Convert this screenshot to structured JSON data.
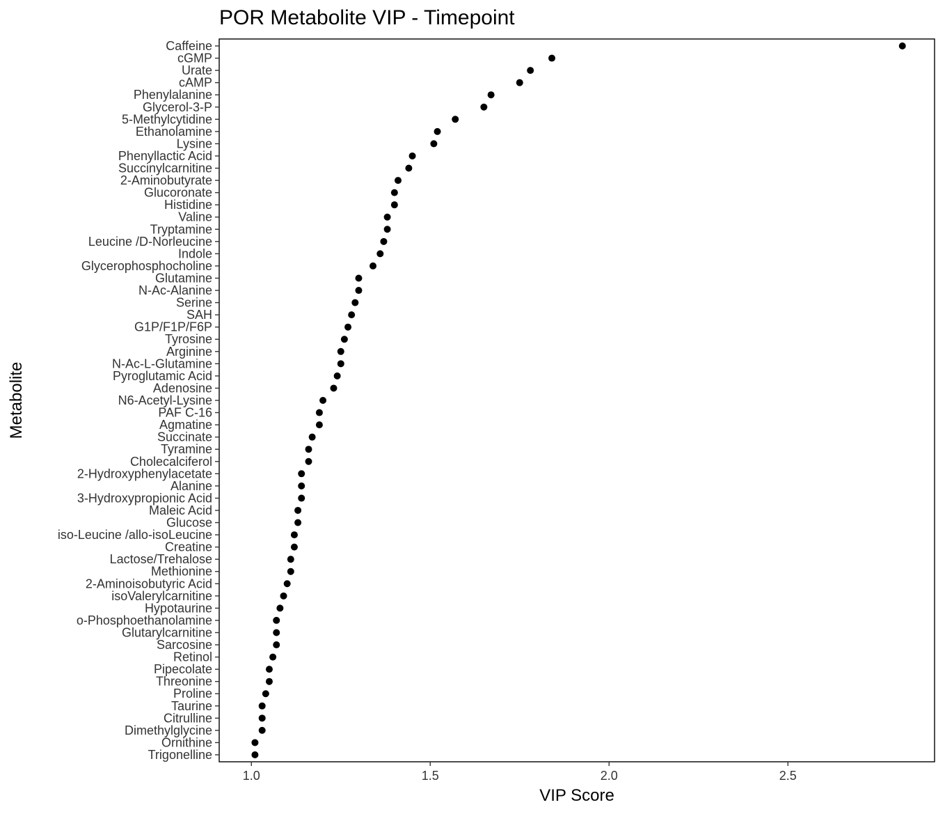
{
  "chart_data": {
    "type": "scatter",
    "title": "POR Metabolite VIP - Timepoint",
    "xlabel": "VIP Score",
    "ylabel": "Metabolite",
    "xlim": [
      0.91,
      2.91
    ],
    "xticks": [
      1.0,
      1.5,
      2.0,
      2.5
    ],
    "xtick_labels": [
      "1.0",
      "1.5",
      "2.0",
      "2.5"
    ],
    "grid": false,
    "legend": "none",
    "point_color": "#000000",
    "categories": [
      "Caffeine",
      "cGMP",
      "Urate",
      "cAMP",
      "Phenylalanine",
      "Glycerol-3-P",
      "5-Methylcytidine",
      "Ethanolamine",
      "Lysine",
      "Phenyllactic Acid",
      "Succinylcarnitine",
      "2-Aminobutyrate",
      "Glucoronate",
      "Histidine",
      "Valine",
      "Tryptamine",
      "Leucine /D-Norleucine",
      "Indole",
      "Glycerophosphocholine",
      "Glutamine",
      "N-Ac-Alanine",
      "Serine",
      "SAH",
      "G1P/F1P/F6P",
      "Tyrosine",
      "Arginine",
      "N-Ac-L-Glutamine",
      "Pyroglutamic Acid",
      "Adenosine",
      "N6-Acetyl-Lysine",
      "PAF C-16",
      "Agmatine",
      "Succinate",
      "Tyramine",
      "Cholecalciferol",
      "2-Hydroxyphenylacetate",
      "Alanine",
      "3-Hydroxypropionic Acid",
      "Maleic Acid",
      "Glucose",
      "iso-Leucine /allo-isoLeucine",
      "Creatine",
      "Lactose/Trehalose",
      "Methionine",
      "2-Aminoisobutyric Acid",
      "isoValerylcarnitine",
      "Hypotaurine",
      "o-Phosphoethanolamine",
      "Glutarylcarnitine",
      "Sarcosine",
      "Retinol",
      "Pipecolate",
      "Threonine",
      "Proline",
      "Taurine",
      "Citrulline",
      "Dimethylglycine",
      "Ornithine",
      "Trigonelline"
    ],
    "values": [
      2.82,
      1.84,
      1.78,
      1.75,
      1.67,
      1.65,
      1.57,
      1.52,
      1.51,
      1.45,
      1.44,
      1.41,
      1.4,
      1.4,
      1.38,
      1.38,
      1.37,
      1.36,
      1.34,
      1.3,
      1.3,
      1.29,
      1.28,
      1.27,
      1.26,
      1.25,
      1.25,
      1.24,
      1.23,
      1.2,
      1.19,
      1.19,
      1.17,
      1.16,
      1.16,
      1.14,
      1.14,
      1.14,
      1.13,
      1.13,
      1.12,
      1.12,
      1.11,
      1.11,
      1.1,
      1.09,
      1.08,
      1.07,
      1.07,
      1.07,
      1.06,
      1.05,
      1.05,
      1.04,
      1.03,
      1.03,
      1.03,
      1.01,
      1.01
    ]
  }
}
